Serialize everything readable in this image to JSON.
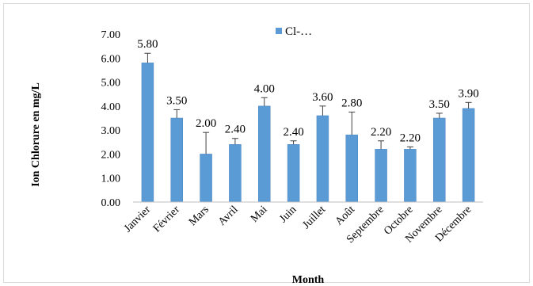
{
  "chart_data": {
    "type": "bar",
    "title": "",
    "xlabel": "Month",
    "ylabel": "Ion Chlorure en mg/L",
    "ylim": [
      0,
      7
    ],
    "ytick_step": 1,
    "ytick_labels": [
      "0.00",
      "1.00",
      "2.00",
      "3.00",
      "4.00",
      "5.00",
      "6.00",
      "7.00"
    ],
    "legend_position": "top",
    "grid": false,
    "categories": [
      "Janvier",
      "Février",
      "Mars",
      "Avril",
      "Mai",
      "Juin",
      "Juillet",
      "Août",
      "Septembre",
      "Octobre",
      "Novembre",
      "Décembre"
    ],
    "series": [
      {
        "name": "Cl-…",
        "color": "#5b9bd5",
        "values": [
          5.8,
          3.5,
          2.0,
          2.4,
          4.0,
          2.4,
          3.6,
          2.8,
          2.2,
          2.2,
          3.5,
          3.9
        ],
        "error_plus": [
          0.4,
          0.35,
          0.9,
          0.25,
          0.35,
          0.15,
          0.4,
          0.95,
          0.35,
          0.1,
          0.2,
          0.25
        ],
        "data_labels": [
          "5.80",
          "3.50",
          "2.00",
          "2.40",
          "4.00",
          "2.40",
          "3.60",
          "2.80",
          "2.20",
          "2.20",
          "3.50",
          "3.90"
        ]
      }
    ]
  }
}
